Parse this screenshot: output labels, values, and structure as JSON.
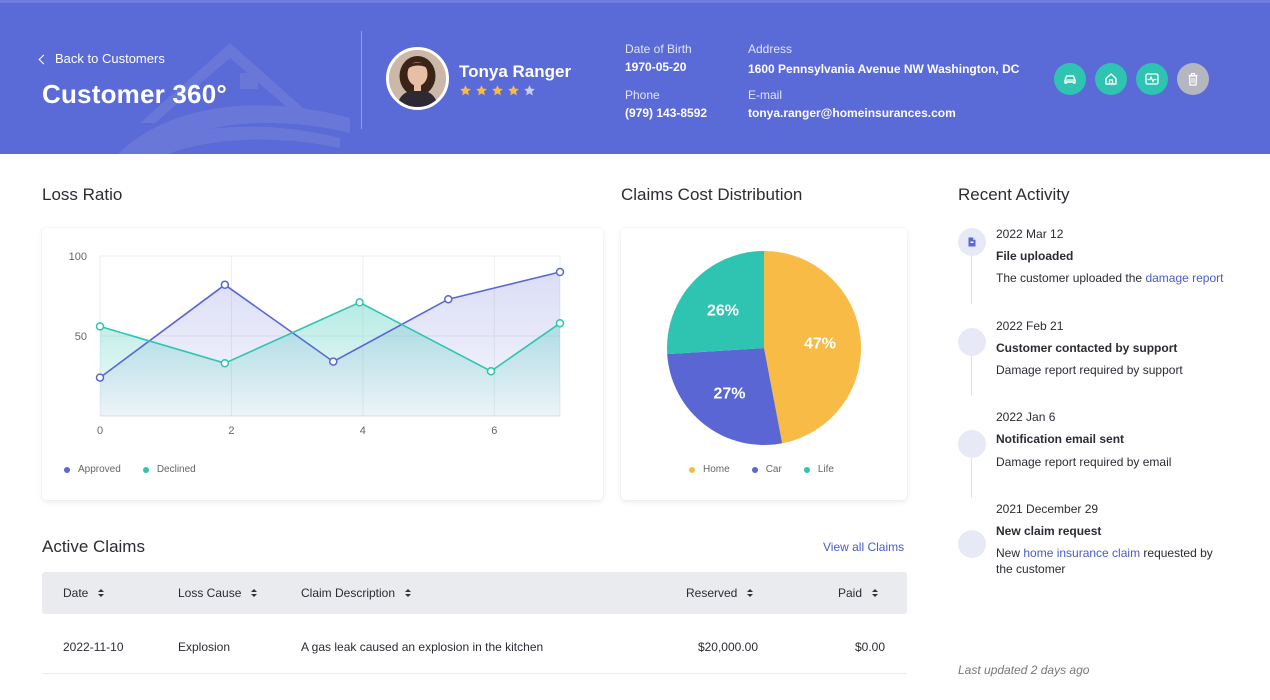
{
  "header": {
    "back_label": "Back to Customers",
    "title": "Customer 360°",
    "customer": {
      "name": "Tonya Ranger",
      "rating": 4,
      "rating_max": 5,
      "dob_label": "Date of Birth",
      "dob": "1970-05-20",
      "phone_label": "Phone",
      "phone": "(979) 143-8592",
      "address_label": "Address",
      "address": "1600 Pennsylvania Avenue NW Washington, DC",
      "email_label": "E-mail",
      "email": "tonya.ranger@homeinsurances.com"
    },
    "actions": [
      {
        "icon": "car-icon",
        "color": "#2fc4b2"
      },
      {
        "icon": "home-icon",
        "color": "#2fc4b2"
      },
      {
        "icon": "heartbeat-icon",
        "color": "#2fc4b2"
      },
      {
        "icon": "trash-icon",
        "color": "#b4b7c0"
      }
    ]
  },
  "loss_ratio": {
    "title": "Loss Ratio",
    "chart_data": {
      "type": "area",
      "x_ticks": [
        0,
        2,
        4,
        6
      ],
      "y_ticks": [
        50,
        100
      ],
      "xlim": [
        0,
        7
      ],
      "ylim": [
        0,
        100
      ],
      "series": [
        {
          "name": "Approved",
          "color": "#5a66d4",
          "x": [
            0,
            1.9,
            3.55,
            5.3,
            7
          ],
          "y": [
            24,
            82,
            34,
            73,
            90
          ]
        },
        {
          "name": "Declined",
          "color": "#2fc4b2",
          "x": [
            0,
            1.9,
            3.95,
            5.95,
            7
          ],
          "y": [
            56,
            33,
            71,
            28,
            58
          ]
        }
      ],
      "legend_position": "bottom-left"
    }
  },
  "claims_distribution": {
    "title": "Claims Cost Distribution",
    "chart_data": {
      "type": "pie",
      "slices": [
        {
          "name": "Home",
          "value": 47,
          "label": "47%",
          "color": "#f7bb46"
        },
        {
          "name": "Car",
          "value": 27,
          "label": "27%",
          "color": "#5a66d4"
        },
        {
          "name": "Life",
          "value": 26,
          "label": "26%",
          "color": "#2fc4b2"
        }
      ],
      "legend_position": "bottom-center"
    }
  },
  "active_claims": {
    "title": "Active Claims",
    "view_all": "View all Claims",
    "columns": [
      "Date",
      "Loss Cause",
      "Claim Description",
      "Reserved",
      "Paid"
    ],
    "rows": [
      [
        "2022-11-10",
        "Explosion",
        "A gas leak caused an explosion in the kitchen",
        "$20,000.00",
        "$0.00"
      ]
    ]
  },
  "recent_activity": {
    "title": "Recent Activity",
    "items": [
      {
        "date": "2022 Mar 12",
        "title": "File uploaded",
        "desc_pre": "The customer uploaded the ",
        "link": "damage report",
        "desc_post": ""
      },
      {
        "date": "2022 Feb 21",
        "title": "Customer contacted by support",
        "desc_pre": "Damage report required by support",
        "link": "",
        "desc_post": ""
      },
      {
        "date": "2022 Jan 6",
        "title": "Notification email sent",
        "desc_pre": "Damage report required by email",
        "link": "",
        "desc_post": ""
      },
      {
        "date": "2021 December 29",
        "title": "New claim request",
        "desc_pre": "New ",
        "link": "home insurance claim",
        "desc_post": " requested by the customer"
      }
    ],
    "last_updated": "Last updated 2 days ago"
  }
}
